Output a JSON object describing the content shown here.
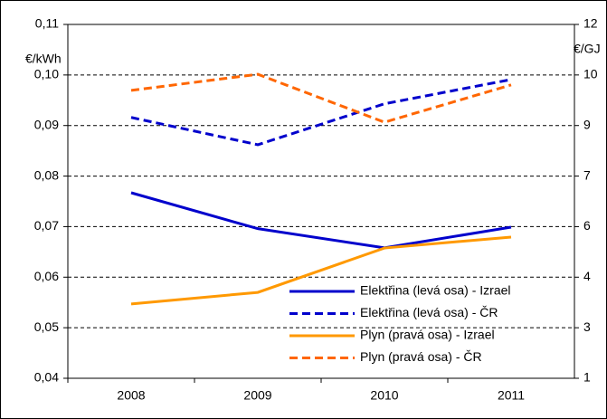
{
  "chart_data": {
    "type": "line",
    "ylabel": "€/kWh",
    "y2label": "€/GJ",
    "categories": [
      "2008",
      "2009",
      "2010",
      "2011"
    ],
    "ylim": [
      0.04,
      0.11
    ],
    "yticks": [
      {
        "value": 0.04,
        "label": "0,04"
      },
      {
        "value": 0.05,
        "label": "0,05"
      },
      {
        "value": 0.06,
        "label": "0,06"
      },
      {
        "value": 0.07,
        "label": "0,07"
      },
      {
        "value": 0.08,
        "label": "0,08"
      },
      {
        "value": 0.09,
        "label": "0,09"
      },
      {
        "value": 0.1,
        "label": "0,10"
      },
      {
        "value": 0.11,
        "label": "0,11"
      }
    ],
    "y2lim": [
      1,
      12
    ],
    "y2ticks": [
      1,
      {
        "value": 2.571,
        "label": "3"
      },
      {
        "value": 4.143,
        "label": "4"
      },
      {
        "value": 5.714,
        "label": "6"
      },
      {
        "value": 7.286,
        "label": "7"
      },
      {
        "value": 8.857,
        "label": "9"
      },
      {
        "value": 10.429,
        "label": "10"
      },
      12
    ],
    "grid": true,
    "legend": "lower right",
    "series": [
      {
        "name": "Elektřina (levá osa) - Izrael",
        "color": "#0000cc",
        "dash": false,
        "values": [
          0.0767,
          0.0696,
          0.0658,
          0.0699
        ]
      },
      {
        "name": "Elektřina (levá osa) - ČR",
        "color": "#0000cc",
        "dash": true,
        "values": [
          0.0916,
          0.0862,
          0.0943,
          0.0991
        ]
      },
      {
        "name": "Plyn (pravá osa) - Izrael",
        "color": "#ff9900",
        "dash": false,
        "axis": "y2",
        "values": [
          3.31,
          3.67,
          5.05,
          5.39
        ]
      },
      {
        "name": "Plyn (pravá osa) - ČR",
        "color": "#ff6600",
        "dash": true,
        "axis": "y2",
        "values": [
          9.95,
          10.45,
          8.96,
          10.12
        ]
      }
    ]
  }
}
